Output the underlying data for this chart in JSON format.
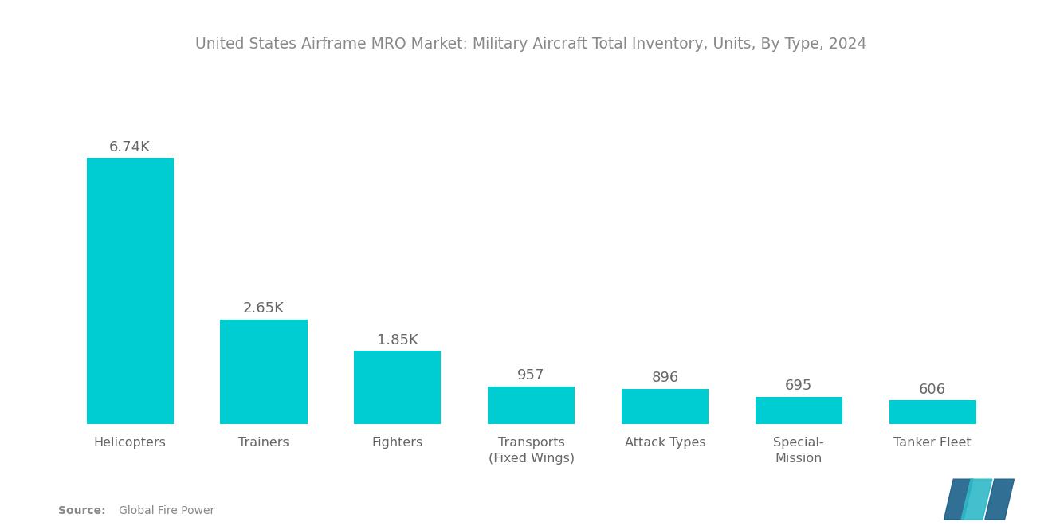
{
  "title": "United States Airframe MRO Market: Military Aircraft Total Inventory, Units, By Type, 2024",
  "categories": [
    "Helicopters",
    "Trainers",
    "Fighters",
    "Transports\n(Fixed Wings)",
    "Attack Types",
    "Special-\nMission",
    "Tanker Fleet"
  ],
  "values": [
    6740,
    2650,
    1850,
    957,
    896,
    695,
    606
  ],
  "labels": [
    "6.74K",
    "2.65K",
    "1.85K",
    "957",
    "896",
    "695",
    "606"
  ],
  "bar_color": "#00CDD1",
  "background_color": "#ffffff",
  "title_color": "#888888",
  "label_color": "#666666",
  "source_bold": "Source:",
  "source_rest": "   Global Fire Power",
  "ylim": [
    0,
    9000
  ]
}
